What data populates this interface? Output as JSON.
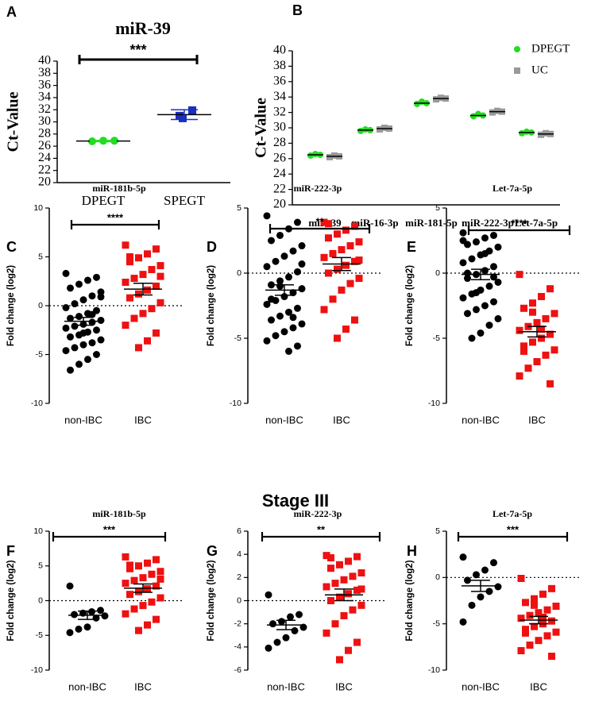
{
  "heading": "Stage III",
  "chart_data": [
    {
      "type": "dot",
      "panel": "A",
      "title": "miR-39",
      "ylabel": "Ct-Value",
      "categories": [
        "DPEGT",
        "SPEGT"
      ],
      "colors": [
        "#22dd22",
        "#1a2fbf"
      ],
      "markers": [
        "circle",
        "square"
      ],
      "values": [
        [
          26.8,
          26.9,
          26.9
        ],
        [
          31.9,
          30.6,
          31.0
        ]
      ],
      "means": [
        26.85,
        31.2
      ],
      "errors": [
        0.1,
        0.8
      ],
      "significance": "***",
      "ylim": [
        20,
        40
      ],
      "yticks": [
        20,
        22,
        24,
        26,
        28,
        30,
        32,
        34,
        36,
        38,
        40
      ]
    },
    {
      "type": "grouped-dot",
      "panel": "B",
      "ylabel": "Ct-Value",
      "categories": [
        "miR-39",
        "miR-16-3p",
        "miR-181-5p",
        "miR-222-3p",
        "Let-7a-5p"
      ],
      "series": [
        {
          "name": "DPEGT",
          "color": "#22dd22",
          "marker": "circle",
          "values": [
            [
              26.4,
              26.6,
              26.5
            ],
            [
              29.6,
              29.8,
              29.7
            ],
            [
              33.1,
              33.4,
              33.2
            ],
            [
              31.5,
              31.8,
              31.6
            ],
            [
              29.3,
              29.5,
              29.4
            ]
          ],
          "means": [
            26.5,
            29.7,
            33.2,
            31.6,
            29.4
          ]
        },
        {
          "name": "UC",
          "color": "#999999",
          "marker": "square",
          "values": [
            [
              26.2,
              26.4,
              26.3
            ],
            [
              29.8,
              30.0,
              29.9
            ],
            [
              33.7,
              33.9,
              33.8
            ],
            [
              32.0,
              32.2,
              32.1
            ],
            [
              29.1,
              29.3,
              29.2
            ]
          ],
          "means": [
            26.3,
            29.9,
            33.8,
            32.1,
            29.2
          ]
        }
      ],
      "legend": "upper right",
      "ylim": [
        20,
        40
      ],
      "yticks": [
        20,
        22,
        24,
        26,
        28,
        30,
        32,
        34,
        36,
        38,
        40
      ]
    },
    {
      "type": "dot",
      "panel": "C",
      "title": "miR-181b-5p",
      "ylabel": "Fold change (log2)",
      "categories": [
        "non-IBC",
        "IBC"
      ],
      "colors": [
        "#000000",
        "#ee1111"
      ],
      "markers": [
        "circle",
        "square"
      ],
      "values": [
        [
          3.3,
          2.9,
          2.6,
          2.2,
          1.8,
          1.4,
          1.0,
          0.6,
          0.2,
          -0.2,
          -0.5,
          -0.8,
          -1.1,
          -1.3,
          -1.5,
          -1.7,
          -1.9,
          -2.1,
          -2.3,
          -2.5,
          -2.7,
          -3.0,
          -3.2,
          -3.5,
          -3.8,
          -4.0,
          -4.3,
          -4.6,
          -5.0,
          -5.5,
          -6.0,
          -6.6,
          0.9,
          -0.9,
          -2.8
        ],
        [
          6.2,
          5.8,
          5.3,
          4.9,
          4.5,
          4.1,
          3.7,
          3.2,
          2.8,
          2.4,
          2.0,
          1.6,
          1.2,
          0.8,
          0.3,
          -0.3,
          -0.8,
          -1.3,
          -2.0,
          -2.8,
          -3.6,
          -4.3,
          5.0,
          3.0
        ]
      ],
      "means": [
        -1.6,
        1.7
      ],
      "errors": [
        0.4,
        0.6
      ],
      "significance": "****",
      "zero_line": true,
      "ylim": [
        -10,
        10
      ],
      "yticks": [
        -10,
        -5,
        0,
        5,
        10
      ]
    },
    {
      "type": "dot",
      "panel": "D",
      "title": "miR-222-3p",
      "ylabel": "Fold change (log2)",
      "categories": [
        "non-IBC",
        "IBC"
      ],
      "colors": [
        "#000000",
        "#ee1111"
      ],
      "markers": [
        "circle",
        "square"
      ],
      "values": [
        [
          4.4,
          3.9,
          3.4,
          2.9,
          2.5,
          2.1,
          1.7,
          1.3,
          0.9,
          0.5,
          0.1,
          -0.3,
          -0.6,
          -0.9,
          -1.2,
          -1.5,
          -1.8,
          -2.1,
          -2.4,
          -2.7,
          -3.0,
          -3.3,
          -3.6,
          -3.9,
          -4.2,
          -4.5,
          -4.8,
          -5.2,
          -5.6,
          -6.0,
          -1.0,
          -2.0,
          0.7,
          -3.4
        ],
        [
          3.9,
          3.6,
          3.3,
          3.0,
          2.7,
          2.4,
          2.1,
          1.8,
          1.5,
          1.2,
          0.9,
          0.6,
          0.3,
          0.0,
          -0.4,
          -0.8,
          -1.3,
          -2.0,
          -2.8,
          -3.6,
          -4.3,
          -5.0,
          3.8,
          1.0
        ]
      ],
      "means": [
        -1.3,
        0.7
      ],
      "errors": [
        0.4,
        0.5
      ],
      "significance": "**",
      "zero_line": true,
      "ylim": [
        -10,
        5
      ],
      "yticks": [
        -10,
        -5,
        0,
        5
      ]
    },
    {
      "type": "dot",
      "panel": "E",
      "title": "Let-7a-5p",
      "ylabel": "Fold change (log2)",
      "categories": [
        "non-IBC",
        "IBC"
      ],
      "colors": [
        "#000000",
        "#ee1111"
      ],
      "markers": [
        "circle",
        "square"
      ],
      "values": [
        [
          3.1,
          2.9,
          2.7,
          2.4,
          2.2,
          2.0,
          1.7,
          1.4,
          1.1,
          0.8,
          0.5,
          0.2,
          -0.1,
          -0.4,
          -0.7,
          -1.0,
          -1.3,
          -1.6,
          -1.9,
          -2.2,
          -2.5,
          -2.8,
          -3.1,
          -3.5,
          -4.0,
          -4.6,
          -5.0,
          2.5,
          -0.3,
          1.5,
          -1.5,
          0.0
        ],
        [
          -0.1,
          -1.2,
          -1.8,
          -2.3,
          -2.7,
          -3.1,
          -3.5,
          -3.8,
          -4.1,
          -4.4,
          -4.7,
          -5.0,
          -5.3,
          -5.6,
          -5.9,
          -6.3,
          -6.8,
          -7.3,
          -7.9,
          -8.5,
          -4.3,
          -3.0,
          -6.0
        ]
      ],
      "means": [
        -0.1,
        -4.5
      ],
      "errors": [
        0.4,
        0.4
      ],
      "significance": "****",
      "zero_line": true,
      "ylim": [
        -10,
        5
      ],
      "yticks": [
        -10,
        -5,
        0,
        5
      ]
    },
    {
      "type": "dot",
      "panel": "F",
      "title": "miR-181b-5p",
      "ylabel": "Fold change (log2)",
      "categories": [
        "non-IBC",
        "IBC"
      ],
      "colors": [
        "#000000",
        "#ee1111"
      ],
      "markers": [
        "circle",
        "square"
      ],
      "values": [
        [
          2.1,
          -1.4,
          -1.6,
          -1.8,
          -2.0,
          -2.2,
          -2.5,
          -3.8,
          -4.1,
          -4.6
        ],
        [
          6.3,
          5.9,
          5.4,
          5.0,
          4.6,
          4.2,
          3.8,
          3.3,
          2.9,
          2.5,
          2.1,
          1.7,
          1.3,
          0.9,
          0.4,
          -0.2,
          -0.7,
          -1.2,
          -1.9,
          -2.7,
          -3.5,
          -4.3,
          5.1,
          3.1
        ]
      ],
      "means": [
        -2.1,
        1.8
      ],
      "errors": [
        0.6,
        0.6
      ],
      "significance": "***",
      "zero_line": true,
      "ylim": [
        -10,
        10
      ],
      "yticks": [
        -10,
        -5,
        0,
        5,
        10
      ]
    },
    {
      "type": "dot",
      "panel": "G",
      "title": "miR-222-3p",
      "ylabel": "Fold change (log2)",
      "categories": [
        "non-IBC",
        "IBC"
      ],
      "colors": [
        "#000000",
        "#ee1111"
      ],
      "markers": [
        "circle",
        "square"
      ],
      "values": [
        [
          0.5,
          -1.2,
          -1.4,
          -1.8,
          -2.0,
          -2.3,
          -2.6,
          -3.2,
          -3.6,
          -4.1
        ],
        [
          3.9,
          3.8,
          3.4,
          3.1,
          2.8,
          2.4,
          2.1,
          1.8,
          1.5,
          1.2,
          0.9,
          0.6,
          0.3,
          0.0,
          -0.4,
          -0.8,
          -1.3,
          -2.0,
          -2.8,
          -3.6,
          -4.3,
          -5.1,
          3.7,
          1.0
        ]
      ],
      "means": [
        -2.1,
        0.5
      ],
      "errors": [
        0.4,
        0.5
      ],
      "significance": "**",
      "zero_line": true,
      "ylim": [
        -6,
        6
      ],
      "yticks": [
        -6,
        -4,
        -2,
        0,
        2,
        4,
        6
      ]
    },
    {
      "type": "dot",
      "panel": "H",
      "title": "Let-7a-5p",
      "ylabel": "Fold change (log2)",
      "categories": [
        "non-IBC",
        "IBC"
      ],
      "colors": [
        "#000000",
        "#ee1111"
      ],
      "markers": [
        "circle",
        "square"
      ],
      "values": [
        [
          2.2,
          1.6,
          0.8,
          0.3,
          -0.3,
          -1.0,
          -1.5,
          -2.1,
          -3.0,
          -4.8
        ],
        [
          -0.1,
          -1.2,
          -1.8,
          -2.3,
          -2.7,
          -3.1,
          -3.5,
          -3.8,
          -4.1,
          -4.4,
          -4.7,
          -5.0,
          -5.3,
          -5.6,
          -5.9,
          -6.3,
          -6.8,
          -7.3,
          -7.9,
          -8.5,
          -4.3,
          -3.0,
          -6.0
        ]
      ],
      "means": [
        -0.9,
        -4.6
      ],
      "errors": [
        0.6,
        0.4
      ],
      "significance": "***",
      "zero_line": true,
      "ylim": [
        -10,
        5
      ],
      "yticks": [
        -10,
        -5,
        0,
        5
      ]
    }
  ]
}
